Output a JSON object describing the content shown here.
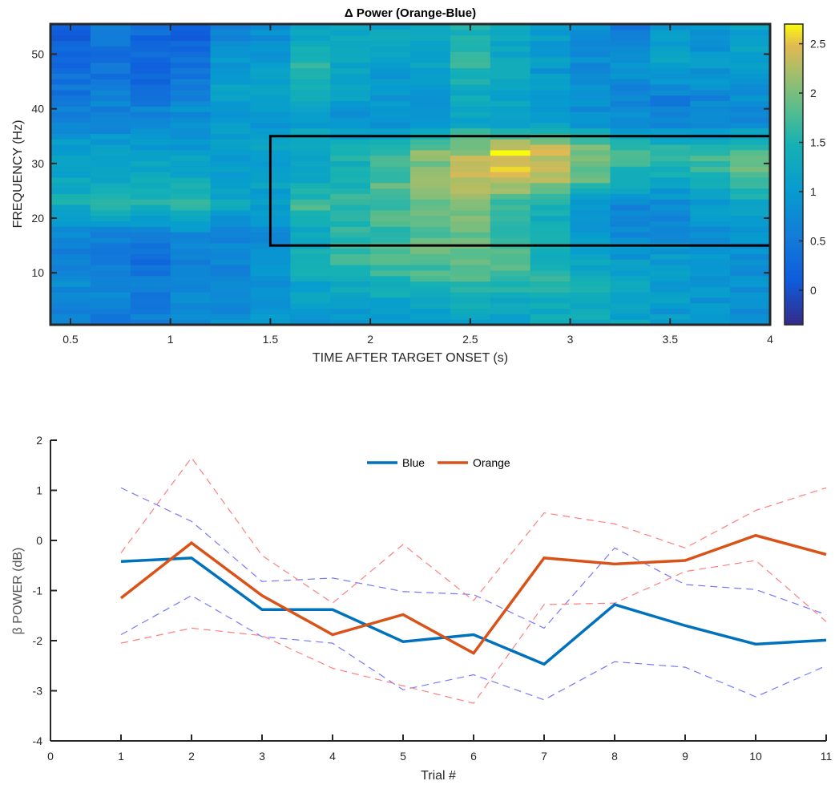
{
  "chart_data": [
    {
      "type": "heatmap",
      "title": "Δ Power (Orange-Blue)",
      "xlabel": "TIME AFTER TARGET ONSET (s)",
      "ylabel": "FREQUENCY (Hz)",
      "xlim": [
        0.4,
        4.0
      ],
      "ylim": [
        0.5,
        55.5
      ],
      "xticks": [
        "0.5",
        "1",
        "1.5",
        "2",
        "2.5",
        "3",
        "3.5",
        "4"
      ],
      "yticks": [
        "10",
        "20",
        "30",
        "40",
        "50"
      ],
      "colorbar": {
        "min": -0.35,
        "max": 2.7,
        "ticks": [
          "0",
          "0.5",
          "1",
          "1.5",
          "2",
          "2.5"
        ],
        "colormap": "parula"
      },
      "time_bins": [
        0.5,
        0.7,
        0.9,
        1.1,
        1.3,
        1.5,
        1.7,
        1.9,
        2.1,
        2.3,
        2.5,
        2.7,
        2.9,
        3.1,
        3.3,
        3.5,
        3.7,
        3.9
      ],
      "freq_bands": [
        {
          "f": [
            1,
            5
          ],
          "values": [
            0.7,
            0.6,
            0.6,
            0.7,
            0.8,
            0.9,
            1.0,
            1.0,
            1.1,
            1.1,
            1.2,
            1.2,
            1.3,
            1.3,
            1.2,
            1.0,
            0.9,
            0.8
          ]
        },
        {
          "f": [
            5,
            10
          ],
          "values": [
            0.8,
            0.7,
            0.6,
            0.7,
            0.8,
            0.9,
            1.2,
            1.3,
            1.4,
            1.5,
            1.6,
            1.6,
            1.6,
            1.5,
            1.3,
            1.1,
            1.0,
            0.9
          ]
        },
        {
          "f": [
            10,
            15
          ],
          "values": [
            0.6,
            0.5,
            0.4,
            0.5,
            0.7,
            0.9,
            1.4,
            1.7,
            1.8,
            1.9,
            2.0,
            1.8,
            1.5,
            1.2,
            1.0,
            1.0,
            0.9,
            0.8
          ]
        },
        {
          "f": [
            15,
            20
          ],
          "values": [
            0.8,
            0.7,
            0.7,
            0.8,
            0.7,
            0.8,
            1.3,
            1.6,
            1.7,
            1.8,
            1.9,
            1.7,
            1.4,
            1.0,
            0.8,
            0.8,
            0.9,
            0.9
          ]
        },
        {
          "f": [
            20,
            25
          ],
          "values": [
            1.4,
            1.5,
            1.6,
            1.6,
            1.3,
            1.0,
            1.7,
            1.7,
            1.8,
            1.9,
            2.0,
            1.7,
            1.4,
            1.0,
            0.7,
            0.8,
            1.0,
            1.2
          ]
        },
        {
          "f": [
            25,
            30
          ],
          "values": [
            1.2,
            1.3,
            1.4,
            1.3,
            1.1,
            1.2,
            1.3,
            1.5,
            1.8,
            2.1,
            2.3,
            2.4,
            2.3,
            1.9,
            1.5,
            1.3,
            1.6,
            1.9
          ]
        },
        {
          "f": [
            30,
            35
          ],
          "values": [
            1.1,
            1.1,
            1.0,
            1.0,
            1.0,
            1.1,
            1.3,
            1.5,
            1.7,
            2.0,
            2.2,
            2.6,
            2.4,
            2.0,
            1.7,
            1.6,
            1.7,
            1.8
          ]
        },
        {
          "f": [
            35,
            40
          ],
          "values": [
            0.7,
            0.7,
            0.8,
            0.9,
            1.0,
            1.0,
            1.1,
            0.8,
            0.9,
            1.0,
            1.2,
            1.1,
            1.1,
            0.9,
            0.8,
            0.6,
            0.7,
            0.8
          ]
        },
        {
          "f": [
            40,
            45
          ],
          "values": [
            0.5,
            0.6,
            0.5,
            0.7,
            1.1,
            1.2,
            1.5,
            1.1,
            0.9,
            1.0,
            1.3,
            1.2,
            1.0,
            0.8,
            0.7,
            0.6,
            0.7,
            0.8
          ]
        },
        {
          "f": [
            45,
            50
          ],
          "values": [
            0.3,
            0.4,
            0.2,
            0.4,
            1.0,
            1.1,
            1.6,
            1.2,
            1.1,
            1.2,
            1.6,
            1.3,
            1.0,
            0.8,
            0.9,
            1.2,
            1.0,
            1.2
          ]
        },
        {
          "f": [
            50,
            55.5
          ],
          "values": [
            0.2,
            0.5,
            0.3,
            0.2,
            0.7,
            0.9,
            1.2,
            1.3,
            1.2,
            1.3,
            1.5,
            1.2,
            1.1,
            0.8,
            0.5,
            1.0,
            0.9,
            1.1
          ]
        }
      ],
      "roi_box": {
        "time": [
          1.5,
          4.0
        ],
        "freq": [
          15,
          35
        ]
      }
    },
    {
      "type": "line",
      "xlabel": "Trial #",
      "ylabel": "β POWER (dB)",
      "xlim": [
        0,
        11
      ],
      "ylim": [
        -4,
        2
      ],
      "xticks": [
        "0",
        "1",
        "2",
        "3",
        "4",
        "5",
        "6",
        "7",
        "8",
        "9",
        "10",
        "11"
      ],
      "yticks": [
        "-4",
        "-3",
        "-2",
        "-1",
        "0",
        "1",
        "2"
      ],
      "legend": "top-center",
      "x": [
        1,
        2,
        3,
        4,
        5,
        6,
        7,
        8,
        9,
        10,
        11
      ],
      "series": [
        {
          "name": "Blue",
          "color": "#0072BD",
          "style": "solid",
          "values": [
            -0.42,
            -0.35,
            -1.38,
            -1.38,
            -2.02,
            -1.88,
            -2.47,
            -1.28,
            -1.7,
            -2.07,
            -1.99
          ]
        },
        {
          "name": "Orange",
          "color": "#D95319",
          "style": "solid",
          "values": [
            -1.15,
            -0.05,
            -1.1,
            -1.88,
            -1.48,
            -2.25,
            -0.35,
            -0.47,
            -0.4,
            0.1,
            -0.28
          ]
        },
        {
          "color": "#7777ff",
          "style": "dashed",
          "values": [
            1.05,
            0.38,
            -0.82,
            -0.75,
            -1.02,
            -1.08,
            -1.75,
            -0.15,
            -0.88,
            -0.98,
            -1.48
          ]
        },
        {
          "color": "#7777ff",
          "style": "dashed",
          "values": [
            -1.88,
            -1.1,
            -1.92,
            -2.05,
            -2.98,
            -2.68,
            -3.18,
            -2.42,
            -2.53,
            -3.12,
            -2.5
          ]
        },
        {
          "color": "#ff7f7f",
          "style": "dashed",
          "values": [
            -0.25,
            1.65,
            -0.3,
            -1.25,
            -0.08,
            -1.2,
            0.55,
            0.33,
            -0.15,
            0.6,
            1.05
          ]
        },
        {
          "color": "#ff7f7f",
          "style": "dashed",
          "values": [
            -2.05,
            -1.75,
            -1.9,
            -2.55,
            -2.9,
            -3.25,
            -1.28,
            -1.25,
            -0.62,
            -0.4,
            -1.62
          ]
        }
      ]
    }
  ]
}
